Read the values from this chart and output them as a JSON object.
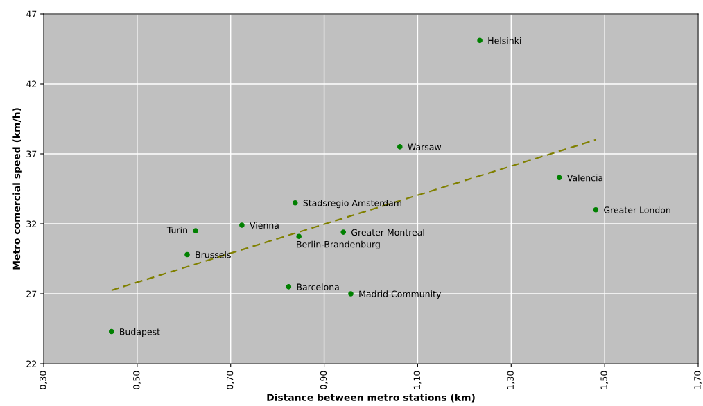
{
  "chart_data": {
    "type": "scatter",
    "xlabel": "Distance between metro stations (km)",
    "ylabel": "Metro comercial speed (km/h)",
    "xlim": [
      0.3,
      1.7
    ],
    "xticks": [
      {
        "value": 0.3,
        "label": "0,30"
      },
      {
        "value": 0.5,
        "label": "0,50"
      },
      {
        "value": 0.7,
        "label": "0,70"
      },
      {
        "value": 0.9,
        "label": "0,90"
      },
      {
        "value": 1.1,
        "label": "1,10"
      },
      {
        "value": 1.3,
        "label": "1,30"
      },
      {
        "value": 1.5,
        "label": "1,50"
      },
      {
        "value": 1.7,
        "label": "1,70"
      }
    ],
    "ylim": [
      22,
      47
    ],
    "yticks": [
      22,
      27,
      32,
      37,
      42,
      47
    ],
    "grid": true,
    "series": [
      {
        "marker": "circle",
        "color": "#008000",
        "x": [
          1.233,
          1.062,
          1.403,
          1.481,
          0.838,
          0.724,
          0.625,
          0.941,
          0.846,
          0.607,
          0.824,
          0.957,
          0.445
        ],
        "values": [
          45.1,
          37.5,
          35.3,
          33.0,
          33.5,
          31.9,
          31.5,
          31.4,
          31.1,
          29.8,
          27.5,
          27.0,
          24.3
        ]
      },
      {
        "type": "line",
        "marker": "none",
        "color": "#808000",
        "line_style": "dashed",
        "x": [
          0.445,
          1.481
        ],
        "values": [
          27.25,
          38.0
        ]
      }
    ],
    "annotations": [
      {
        "text": "Helsinki",
        "x": 1.233,
        "y": 45.1
      },
      {
        "text": "Warsaw",
        "x": 1.062,
        "y": 37.5
      },
      {
        "text": "Valencia",
        "x": 1.403,
        "y": 35.3
      },
      {
        "text": "Greater London",
        "x": 1.481,
        "y": 33.0
      },
      {
        "text": "Stadsregio Amsterdam",
        "x": 0.838,
        "y": 33.5
      },
      {
        "text": "Vienna",
        "x": 0.724,
        "y": 31.9
      },
      {
        "text": "Turin",
        "x": 0.625,
        "y": 31.5
      },
      {
        "text": "Greater Montreal",
        "x": 0.941,
        "y": 31.4
      },
      {
        "text": "Berlin-Brandenburg",
        "x": 0.846,
        "y": 31.1
      },
      {
        "text": "Brussels",
        "x": 0.607,
        "y": 29.8
      },
      {
        "text": "Barcelona",
        "x": 0.824,
        "y": 27.5
      },
      {
        "text": "Madrid Community",
        "x": 0.957,
        "y": 27.0
      },
      {
        "text": "Budapest",
        "x": 0.445,
        "y": 24.3
      }
    ]
  }
}
